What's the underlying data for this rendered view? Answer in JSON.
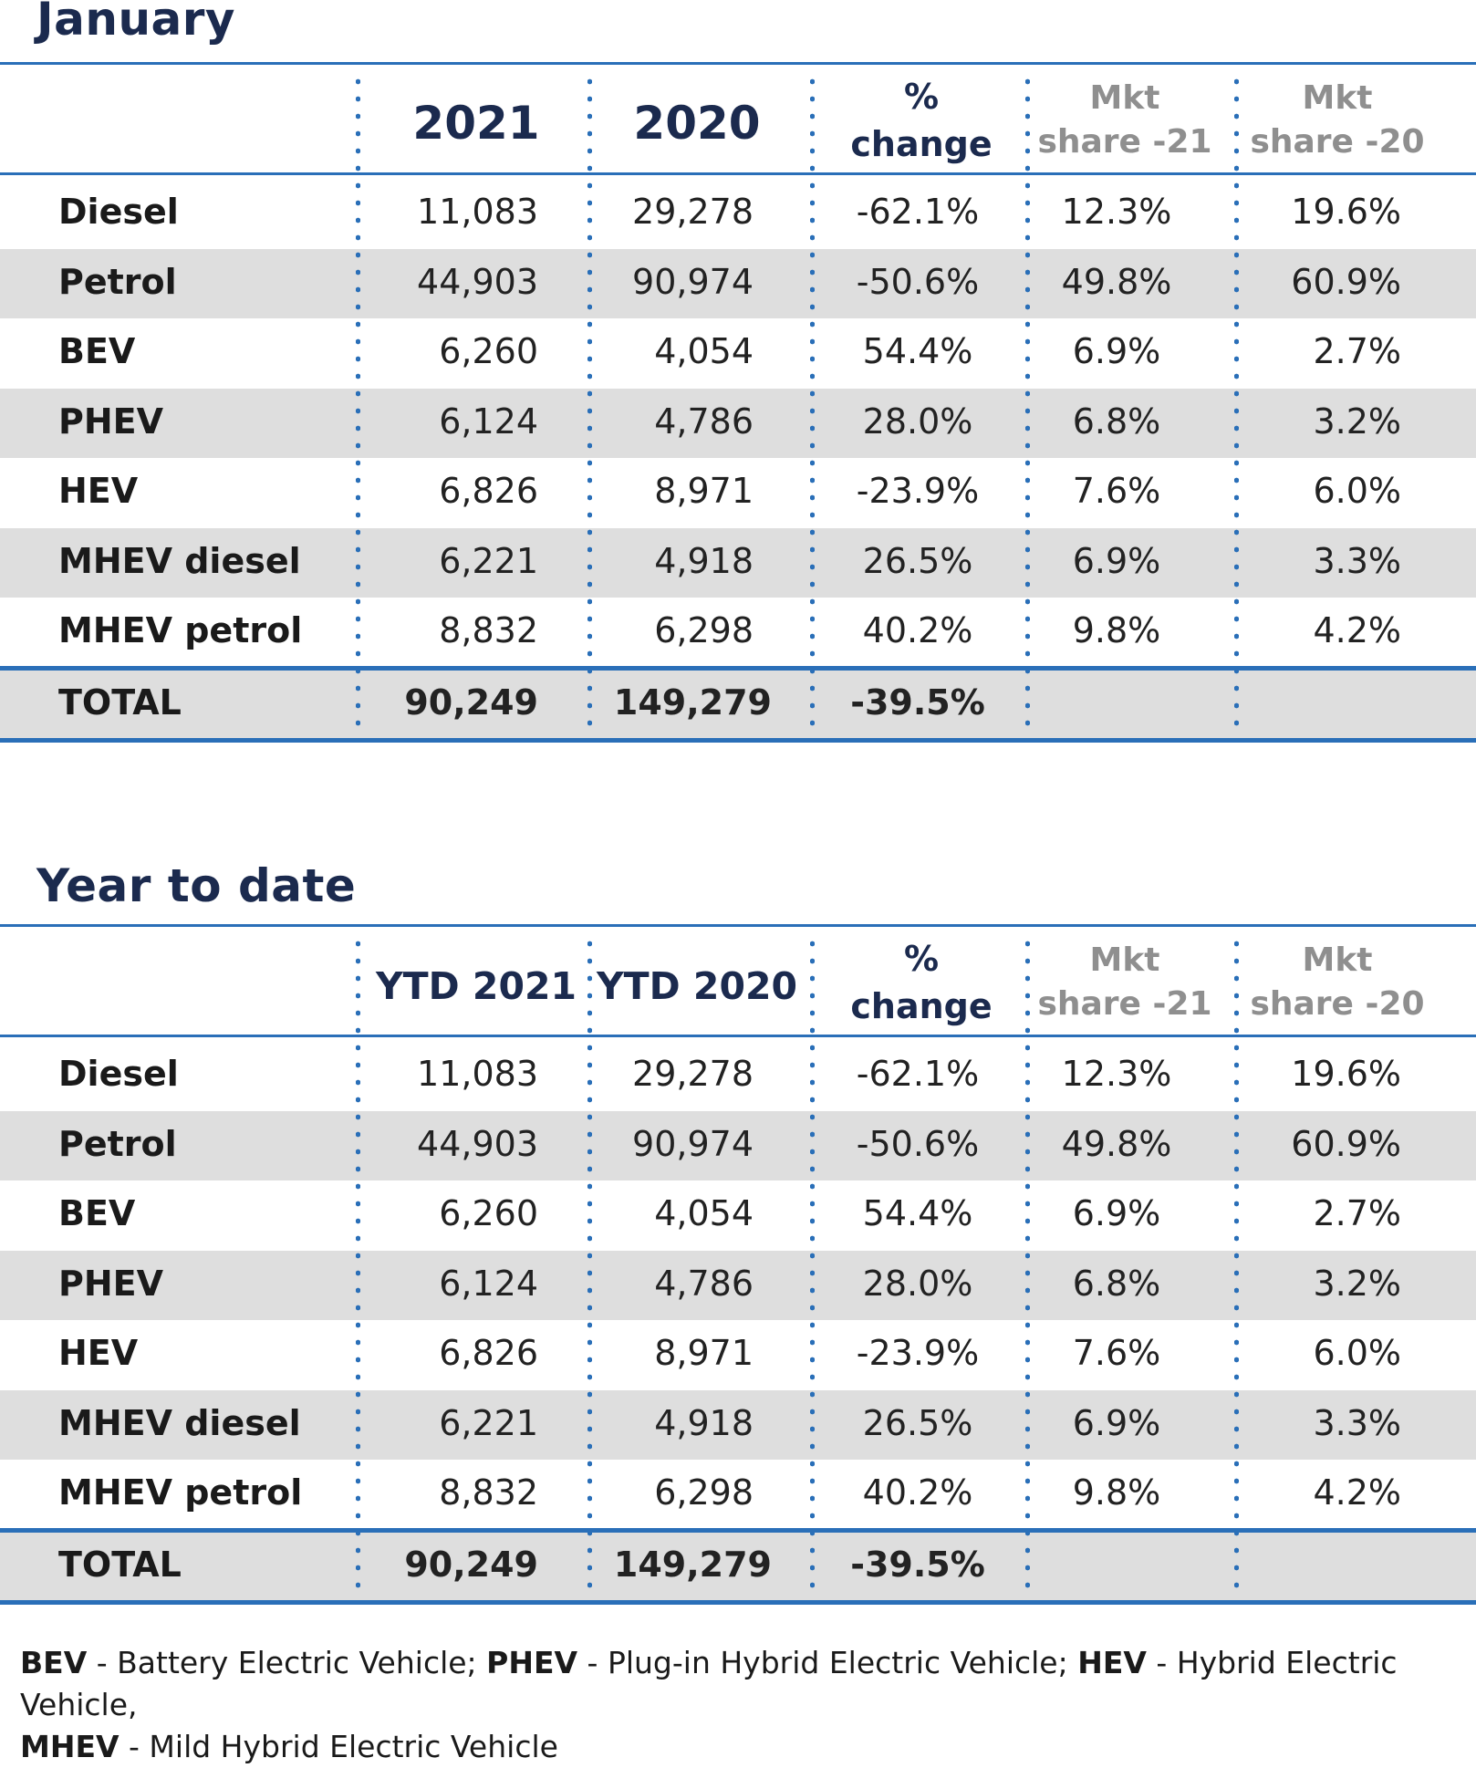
{
  "chart_data": [
    {
      "type": "table",
      "title": "January",
      "columns": [
        "",
        "2021",
        "2020",
        "% change",
        "Mkt share -21",
        "Mkt share -20"
      ],
      "header": {
        "c1": "2021",
        "c2": "2020",
        "c3_line1": "%",
        "c3_line2": "change",
        "c4_line1": "Mkt",
        "c4_line2": "share -21",
        "c5_line1": "Mkt",
        "c5_line2": "share -20"
      },
      "rows": [
        {
          "label": "Diesel",
          "v2021": "11,083",
          "v2020": "29,278",
          "change": "-62.1%",
          "share21": "12.3%",
          "share20": "19.6%"
        },
        {
          "label": "Petrol",
          "v2021": "44,903",
          "v2020": "90,974",
          "change": "-50.6%",
          "share21": "49.8%",
          "share20": "60.9%"
        },
        {
          "label": "BEV",
          "v2021": "6,260",
          "v2020": "4,054",
          "change": "54.4%",
          "share21": "6.9%",
          "share20": "2.7%"
        },
        {
          "label": "PHEV",
          "v2021": "6,124",
          "v2020": "4,786",
          "change": "28.0%",
          "share21": "6.8%",
          "share20": "3.2%"
        },
        {
          "label": "HEV",
          "v2021": "6,826",
          "v2020": "8,971",
          "change": "-23.9%",
          "share21": "7.6%",
          "share20": "6.0%"
        },
        {
          "label": "MHEV diesel",
          "v2021": "6,221",
          "v2020": "4,918",
          "change": "26.5%",
          "share21": "6.9%",
          "share20": "3.3%"
        },
        {
          "label": "MHEV petrol",
          "v2021": "8,832",
          "v2020": "6,298",
          "change": "40.2%",
          "share21": "9.8%",
          "share20": "4.2%"
        }
      ],
      "total": {
        "label": "TOTAL",
        "v2021": "90,249",
        "v2020": "149,279",
        "change": "-39.5%"
      }
    },
    {
      "type": "table",
      "title": "Year to date",
      "columns": [
        "",
        "YTD 2021",
        "YTD 2020",
        "% change",
        "Mkt share -21",
        "Mkt share -20"
      ],
      "header": {
        "c1": "YTD 2021",
        "c2": "YTD 2020",
        "c3_line1": "%",
        "c3_line2": "change",
        "c4_line1": "Mkt",
        "c4_line2": "share -21",
        "c5_line1": "Mkt",
        "c5_line2": "share -20"
      },
      "rows": [
        {
          "label": "Diesel",
          "v2021": "11,083",
          "v2020": "29,278",
          "change": "-62.1%",
          "share21": "12.3%",
          "share20": "19.6%"
        },
        {
          "label": "Petrol",
          "v2021": "44,903",
          "v2020": "90,974",
          "change": "-50.6%",
          "share21": "49.8%",
          "share20": "60.9%"
        },
        {
          "label": "BEV",
          "v2021": "6,260",
          "v2020": "4,054",
          "change": "54.4%",
          "share21": "6.9%",
          "share20": "2.7%"
        },
        {
          "label": "PHEV",
          "v2021": "6,124",
          "v2020": "4,786",
          "change": "28.0%",
          "share21": "6.8%",
          "share20": "3.2%"
        },
        {
          "label": "HEV",
          "v2021": "6,826",
          "v2020": "8,971",
          "change": "-23.9%",
          "share21": "7.6%",
          "share20": "6.0%"
        },
        {
          "label": "MHEV diesel",
          "v2021": "6,221",
          "v2020": "4,918",
          "change": "26.5%",
          "share21": "6.9%",
          "share20": "3.3%"
        },
        {
          "label": "MHEV petrol",
          "v2021": "8,832",
          "v2020": "6,298",
          "change": "40.2%",
          "share21": "9.8%",
          "share20": "4.2%"
        }
      ],
      "total": {
        "label": "TOTAL",
        "v2021": "90,249",
        "v2020": "149,279",
        "change": "-39.5%"
      }
    }
  ],
  "legend": {
    "bev_abbr": "BEV",
    "bev_text": " - Battery Electric Vehicle; ",
    "phev_abbr": "PHEV",
    "phev_text": " - Plug-in Hybrid Electric Vehicle; ",
    "hev_abbr": "HEV",
    "hev_text": " - Hybrid Electric Vehicle,",
    "mhev_abbr": "MHEV",
    "mhev_text": " - Mild Hybrid Electric Vehicle"
  },
  "colors": {
    "title": "#1b2a4e",
    "rule": "#2a6fb8",
    "band": "#dedede",
    "muted_header": "#8f8f8f"
  }
}
